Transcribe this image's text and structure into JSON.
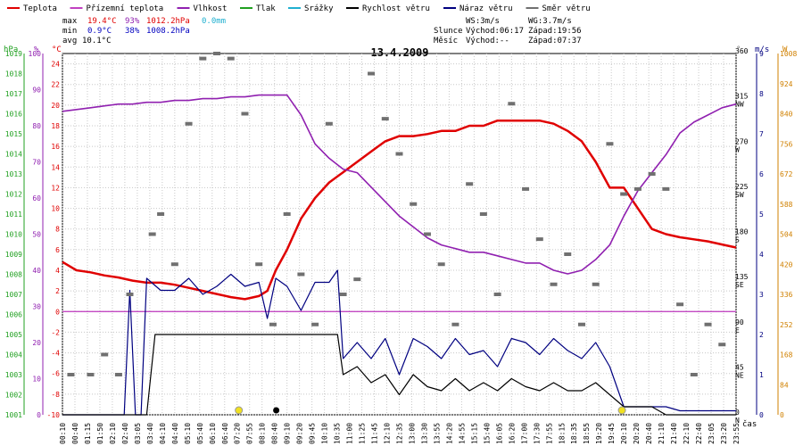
{
  "legend": [
    {
      "label": "Teplota",
      "color": "#e00000"
    },
    {
      "label": "Přízemní teplota",
      "color": "#c040c0"
    },
    {
      "label": "Vlhkost",
      "color": "#9020b0"
    },
    {
      "label": "Tlak",
      "color": "#20a020"
    },
    {
      "label": "Srážky",
      "color": "#20b0d0"
    },
    {
      "label": "Rychlost větru",
      "color": "#000000"
    },
    {
      "label": "Náraz větru",
      "color": "#000080"
    },
    {
      "label": "Směr větru",
      "color": "#707070"
    }
  ],
  "stats": {
    "max_label": "max",
    "max_temp": "19.4°C",
    "max_hum": "93%",
    "max_press": "1012.2hPa",
    "max_rain": "0.0mm",
    "min_label": "min",
    "min_temp": "0.9°C",
    "min_hum": "38%",
    "min_press": "1008.2hPa",
    "avg_label": "avg",
    "avg_temp": "10.1°C"
  },
  "wind_info": {
    "ws": "WS:3m/s",
    "wg": "WG:3.7m/s",
    "slunce_label": "Slunce",
    "slunce_vychod": "Východ:06:17",
    "slunce_zapad": "Západ:19:56",
    "mesic_label": "Měsíc",
    "mesic_vychod": "Východ:--",
    "mesic_zapad": "Západ:07:37"
  },
  "colors": {
    "temp": "#e00000",
    "ground_temp": "#c040c0",
    "humidity": "#9020b0",
    "pressure": "#20a020",
    "rain": "#20b0d0",
    "wind_speed": "#000000",
    "wind_gust": "#000080",
    "wind_dir": "#707070",
    "sun": "#f0e020"
  },
  "chart_data": {
    "type": "line",
    "title": "13.4.2009",
    "xlabel": "čas",
    "axis_units": {
      "press": "hPa",
      "hum": "%",
      "temp": "°C",
      "dir": "°",
      "wind_ms": "m/s",
      "wind_w": "W"
    },
    "x_ticks": [
      "00:10",
      "00:40",
      "01:15",
      "01:50",
      "02:10",
      "02:40",
      "03:05",
      "03:40",
      "04:10",
      "04:40",
      "05:10",
      "05:40",
      "06:10",
      "06:40",
      "07:20",
      "07:55",
      "08:10",
      "08:40",
      "09:10",
      "09:20",
      "09:45",
      "10:10",
      "10:35",
      "11:00",
      "11:25",
      "11:45",
      "12:10",
      "12:35",
      "13:00",
      "13:30",
      "13:55",
      "14:20",
      "14:55",
      "15:15",
      "15:40",
      "16:05",
      "16:20",
      "17:00",
      "17:30",
      "17:55",
      "18:15",
      "18:35",
      "18:55",
      "19:20",
      "19:45",
      "20:10",
      "20:20",
      "20:40",
      "21:10",
      "21:40",
      "22:10",
      "22:40",
      "23:05",
      "23:20",
      "23:55"
    ],
    "axes": {
      "press": {
        "min": 1001,
        "max": 1019,
        "ticks": [
          1001,
          1002,
          1003,
          1004,
          1005,
          1006,
          1007,
          1008,
          1009,
          1010,
          1011,
          1012,
          1013,
          1014,
          1015,
          1016,
          1017,
          1018,
          1019
        ]
      },
      "hum": {
        "min": 0,
        "max": 100,
        "ticks": [
          0,
          10,
          20,
          30,
          40,
          50,
          60,
          70,
          80,
          90,
          100
        ]
      },
      "temp": {
        "min": -10,
        "max": 25,
        "ticks": [
          -10,
          -8,
          -6,
          -4,
          -2,
          0,
          2,
          4,
          6,
          8,
          10,
          12,
          14,
          16,
          18,
          20,
          22,
          24
        ]
      },
      "dir": {
        "min": 0,
        "max": 360,
        "ticks": [
          0,
          45,
          90,
          135,
          180,
          225,
          270,
          315,
          360
        ],
        "labels": [
          "N",
          "NE",
          "E",
          "SE",
          "S",
          "SW",
          "W",
          "NW",
          ""
        ]
      },
      "wind_ms": {
        "min": 0,
        "max": 9,
        "ticks": [
          0,
          1,
          2,
          3,
          4,
          5,
          6,
          7,
          8,
          9
        ]
      },
      "wind_w": {
        "min": 0,
        "max": 1008,
        "ticks": [
          0,
          84,
          168,
          252,
          336,
          420,
          504,
          588,
          672,
          756,
          840,
          924,
          1008
        ]
      }
    },
    "series": [
      {
        "name": "Teplota",
        "axis": "temp",
        "x": [
          0,
          0.5,
          1,
          1.5,
          2,
          2.5,
          3,
          3.5,
          4,
          4.5,
          5,
          5.5,
          6,
          6.5,
          7,
          7.3,
          7.6,
          8,
          8.5,
          9,
          9.5,
          10,
          10.5,
          11,
          11.5,
          12,
          12.5,
          13,
          13.5,
          14,
          14.5,
          15,
          15.5,
          16,
          16.5,
          17,
          17.5,
          18,
          18.5,
          19,
          19.5,
          20,
          20.5,
          21,
          21.5,
          22,
          22.5,
          23,
          23.5,
          24
        ],
        "y": [
          4.8,
          4,
          3.8,
          3.5,
          3.3,
          3,
          2.8,
          2.8,
          2.6,
          2.3,
          2,
          1.7,
          1.4,
          1.2,
          1.5,
          2,
          4,
          6,
          9,
          11,
          12.5,
          13.5,
          14.5,
          15.5,
          16.5,
          17,
          17,
          17.2,
          17.5,
          17.5,
          18,
          18,
          18.5,
          18.5,
          18.5,
          18.5,
          18.2,
          17.5,
          16.5,
          14.5,
          12,
          12,
          10,
          8,
          7.5,
          7.2,
          7,
          6.8,
          6.5,
          6.2
        ]
      },
      {
        "name": "Vlhkost",
        "axis": "hum",
        "x": [
          0,
          0.5,
          1,
          1.5,
          2,
          2.5,
          3,
          3.5,
          4,
          4.5,
          5,
          5.5,
          6,
          6.5,
          7,
          7.5,
          8,
          8.5,
          9,
          9.5,
          10,
          10.5,
          11,
          11.5,
          12,
          12.5,
          13,
          13.5,
          14,
          14.5,
          15,
          15.5,
          16,
          16.5,
          17,
          17.5,
          18,
          18.5,
          19,
          19.5,
          20,
          20.5,
          21,
          21.5,
          22,
          22.5,
          23,
          23.5,
          24
        ],
        "y": [
          84,
          84.5,
          85,
          85.5,
          86,
          86,
          86.5,
          86.5,
          87,
          87,
          87.5,
          87.5,
          88,
          88,
          88.5,
          88.5,
          88.5,
          83,
          75,
          71,
          68,
          67,
          63,
          59,
          55,
          52,
          49,
          47,
          46,
          45,
          45,
          44,
          43,
          42,
          42,
          40,
          39,
          40,
          43,
          47,
          55,
          62,
          67,
          72,
          78,
          81,
          83,
          85,
          86
        ]
      },
      {
        "name": "Přízemní teplota",
        "axis": "temp",
        "x": [
          0,
          24
        ],
        "y": [
          0,
          0
        ]
      },
      {
        "name": "Náraz větru",
        "axis": "wind_ms",
        "x": [
          0,
          1.5,
          2.2,
          2.4,
          2.6,
          2.8,
          3,
          3.5,
          4,
          4.5,
          5,
          5.5,
          6,
          6.5,
          7,
          7.3,
          7.6,
          8,
          8.5,
          9,
          9.5,
          9.8,
          10,
          10.5,
          11,
          11.5,
          12,
          12.5,
          13,
          13.5,
          14,
          14.5,
          15,
          15.5,
          16,
          16.5,
          17,
          17.5,
          18,
          18.5,
          19,
          19.5,
          20,
          20.5,
          21,
          21.5,
          22,
          22.5,
          23,
          23.5,
          24
        ],
        "y": [
          0,
          0,
          0,
          3.1,
          0,
          0,
          3.4,
          3.1,
          3.1,
          3.4,
          3.0,
          3.2,
          3.5,
          3.2,
          3.3,
          2.4,
          3.4,
          3.2,
          2.6,
          3.3,
          3.3,
          3.6,
          1.4,
          1.8,
          1.4,
          1.9,
          1.0,
          1.9,
          1.7,
          1.4,
          1.9,
          1.5,
          1.6,
          1.2,
          1.9,
          1.8,
          1.5,
          1.9,
          1.6,
          1.4,
          1.8,
          1.2,
          0.2,
          0.2,
          0.2,
          0.2,
          0.1,
          0.1,
          0.1,
          0.1,
          0.1
        ]
      },
      {
        "name": "Rychlost větru",
        "axis": "wind_ms",
        "x": [
          0,
          1.5,
          2.2,
          2.4,
          2.6,
          3,
          3.3,
          3.5,
          4,
          4.5,
          5,
          5.5,
          6,
          6.5,
          7,
          7.5,
          8,
          8.5,
          9,
          9.5,
          9.8,
          10,
          10.5,
          11,
          11.5,
          12,
          12.5,
          13,
          13.5,
          14,
          14.5,
          15,
          15.5,
          16,
          16.5,
          17,
          17.5,
          18,
          18.5,
          19,
          19.5,
          20,
          20.5,
          21,
          21.5,
          22,
          22.5,
          23,
          23.5,
          24
        ],
        "y": [
          0,
          0,
          0,
          0,
          0,
          0,
          2.0,
          2.0,
          2.0,
          2.0,
          2.0,
          2.0,
          2.0,
          2.0,
          2.0,
          2.0,
          2.0,
          2.0,
          2.0,
          2.0,
          2.0,
          1.0,
          1.2,
          0.8,
          1.0,
          0.5,
          1.0,
          0.7,
          0.6,
          0.9,
          0.6,
          0.8,
          0.6,
          0.9,
          0.7,
          0.6,
          0.8,
          0.6,
          0.6,
          0.8,
          0.5,
          0.2,
          0.2,
          0.2,
          0,
          0,
          0,
          0,
          0,
          0
        ]
      },
      {
        "name": "Směr větru",
        "axis": "dir",
        "x": [
          0.3,
          1,
          1.5,
          2,
          2.4,
          3.2,
          3.5,
          4,
          4.5,
          5,
          5.5,
          6,
          6.5,
          7,
          7.5,
          8,
          8.5,
          9,
          9.5,
          10,
          10.5,
          11,
          11.5,
          12,
          12.5,
          13,
          13.5,
          14,
          14.5,
          15,
          15.5,
          16,
          16.5,
          17,
          17.5,
          18,
          18.5,
          19,
          19.5,
          20,
          20.5,
          21,
          21.5,
          22,
          22.5,
          23,
          23.5
        ],
        "y": [
          40,
          40,
          60,
          40,
          120,
          180,
          200,
          150,
          290,
          355,
          360,
          355,
          300,
          150,
          90,
          200,
          140,
          90,
          290,
          120,
          135,
          340,
          295,
          260,
          210,
          180,
          150,
          90,
          230,
          200,
          120,
          310,
          225,
          175,
          130,
          160,
          90,
          130,
          270,
          220,
          225,
          240,
          225,
          110,
          40,
          90,
          70
        ]
      }
    ]
  }
}
